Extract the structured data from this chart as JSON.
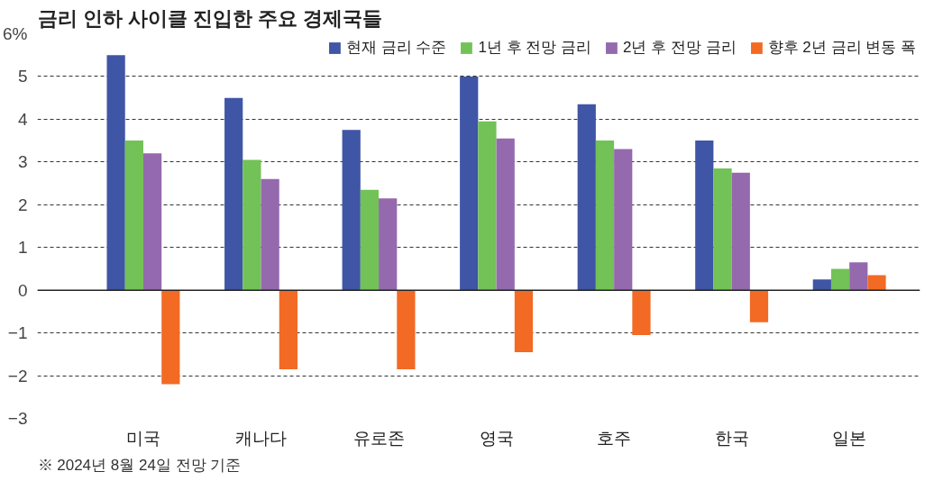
{
  "chart_data": {
    "type": "bar",
    "title": "금리 인하 사이클 진입한 주요 경제국들",
    "categories": [
      "미국",
      "캐나다",
      "유로존",
      "영국",
      "호주",
      "한국",
      "일본"
    ],
    "series": [
      {
        "name": "현재 금리 수준",
        "color": "#3f55a5",
        "values": [
          5.5,
          4.5,
          3.75,
          5.0,
          4.35,
          3.5,
          0.25
        ]
      },
      {
        "name": "1년 후 전망 금리",
        "color": "#72c257",
        "values": [
          3.5,
          3.05,
          2.35,
          3.95,
          3.5,
          2.85,
          0.5
        ]
      },
      {
        "name": "2년 후 전망 금리",
        "color": "#9469ad",
        "values": [
          3.2,
          2.6,
          2.15,
          3.55,
          3.3,
          2.75,
          0.65
        ]
      },
      {
        "name": "향후 2년 금리 변동 폭",
        "color": "#f26a24",
        "values": [
          -2.2,
          -1.85,
          -1.85,
          -1.45,
          -1.05,
          -0.75,
          0.35
        ]
      }
    ],
    "ylim": [
      -3,
      6
    ],
    "yticks": [
      {
        "value": -3,
        "label": "−3"
      },
      {
        "value": -2,
        "label": "−2"
      },
      {
        "value": -1,
        "label": "−1"
      },
      0,
      1,
      2,
      3,
      4,
      5,
      {
        "value": 6,
        "label": "6%"
      }
    ],
    "grid": "y",
    "legend": "top right",
    "annotations": [
      "※ 2024년 8월 24일 전망 기준"
    ]
  }
}
